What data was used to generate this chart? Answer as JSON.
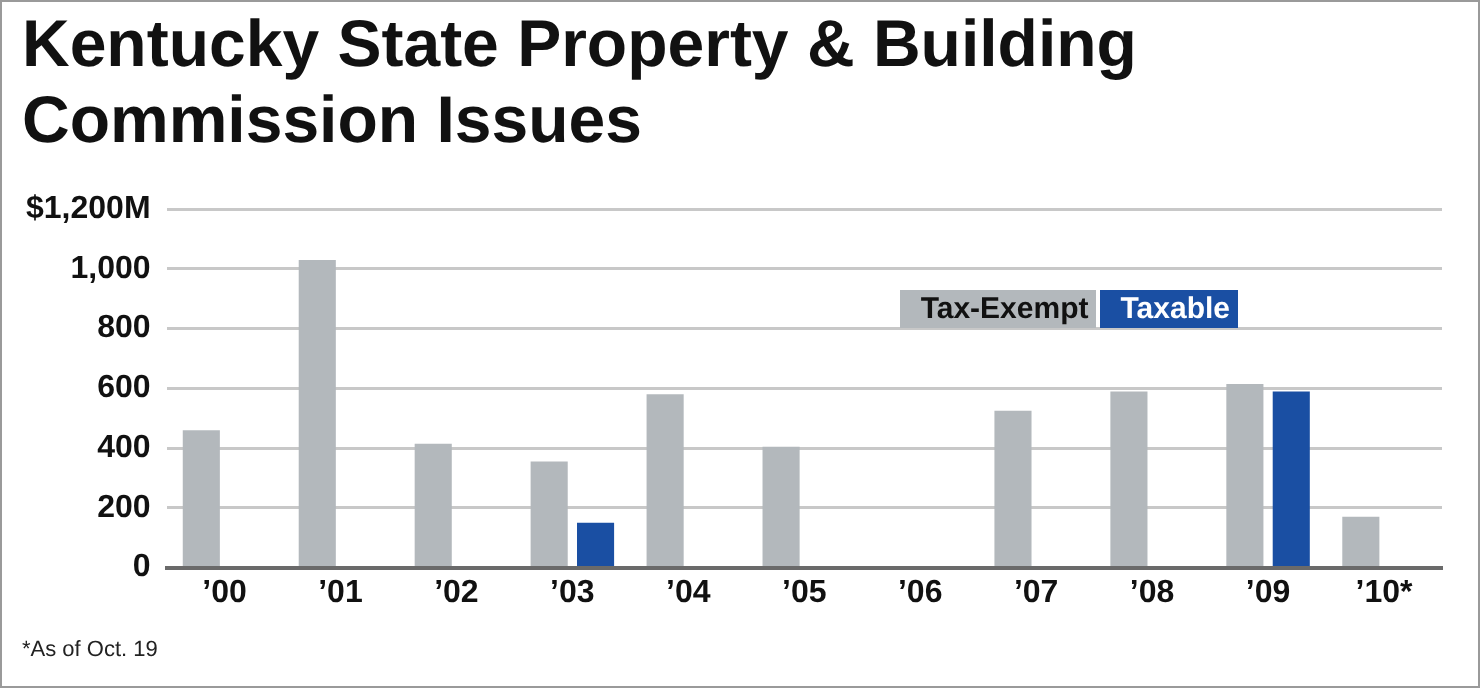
{
  "chart_data": {
    "type": "bar",
    "title": "Kentucky State Property & Building Commission Issues",
    "categories": [
      "’00",
      "’01",
      "’02",
      "’03",
      "’04",
      "’05",
      "’06",
      "’07",
      "’08",
      "’09",
      "’10*"
    ],
    "series": [
      {
        "name": "Tax-Exempt",
        "color": "#b3b8bc",
        "values": [
          460,
          1030,
          415,
          355,
          580,
          405,
          null,
          525,
          590,
          615,
          170
        ]
      },
      {
        "name": "Taxable",
        "color": "#1a4fa3",
        "values": [
          null,
          null,
          null,
          150,
          null,
          null,
          null,
          null,
          null,
          590,
          null
        ]
      }
    ],
    "ylim": [
      0,
      1200
    ],
    "yticks": [
      0,
      200,
      400,
      600,
      800,
      "1,000",
      {
        "value": 1200,
        "label": "$1,200M"
      }
    ],
    "grid": "y",
    "legend": "top right",
    "annotations": [
      "*As of Oct. 19"
    ]
  }
}
